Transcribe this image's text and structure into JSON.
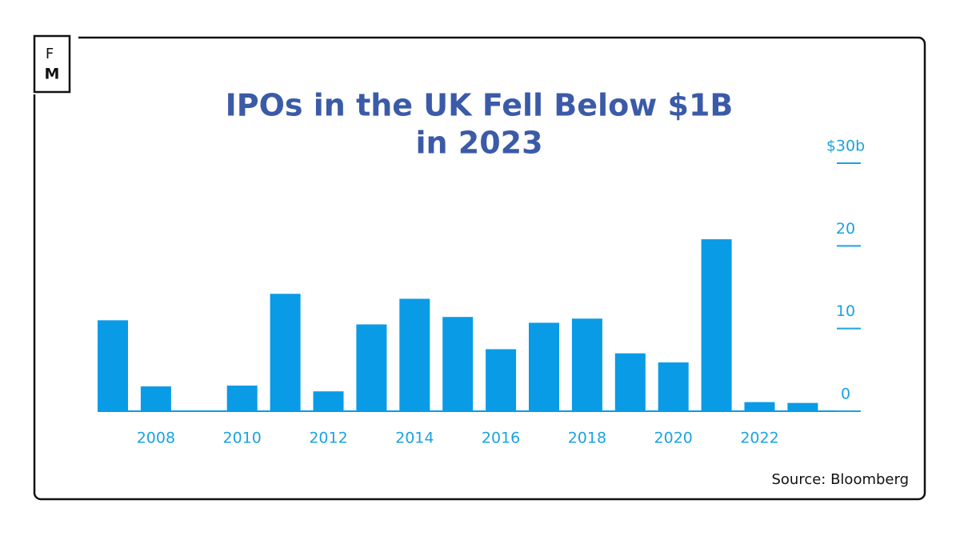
{
  "logo": [
    "F",
    "M"
  ],
  "chart_data": {
    "type": "bar",
    "title": [
      "IPOs in the UK Fell Below $1B",
      "in 2023"
    ],
    "categories": [
      null,
      "2008",
      null,
      "2010",
      null,
      "2012",
      null,
      "2014",
      null,
      "2016",
      null,
      "2018",
      null,
      "2020",
      null,
      "2022",
      null
    ],
    "values": [
      11.0,
      3.0,
      0.1,
      3.1,
      14.2,
      2.4,
      10.5,
      13.6,
      11.4,
      7.5,
      10.7,
      11.2,
      7.0,
      5.9,
      20.8,
      1.1,
      1.0
    ],
    "color": "#0a9be6",
    "ylim": [
      0,
      30
    ],
    "yticks": [
      0,
      10,
      20,
      {
        "value": 30,
        "label": "$30b"
      }
    ],
    "source": "Source: Bloomberg"
  }
}
